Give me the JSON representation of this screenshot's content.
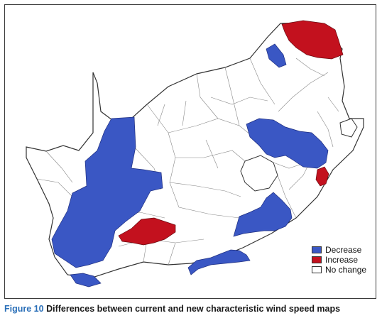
{
  "legend": {
    "items": [
      {
        "label": "Decrease",
        "color": "#3a57c4"
      },
      {
        "label": "Increase",
        "color": "#c3111e"
      },
      {
        "label": "No change",
        "color": "#ffffff"
      }
    ]
  },
  "caption": {
    "label": "Figure 10",
    "text": "Differences between current and new characteristic wind speed maps"
  },
  "colors": {
    "decrease": "#3a57c4",
    "increase": "#c3111e",
    "no_change": "#ffffff",
    "boundary": "#555555"
  }
}
